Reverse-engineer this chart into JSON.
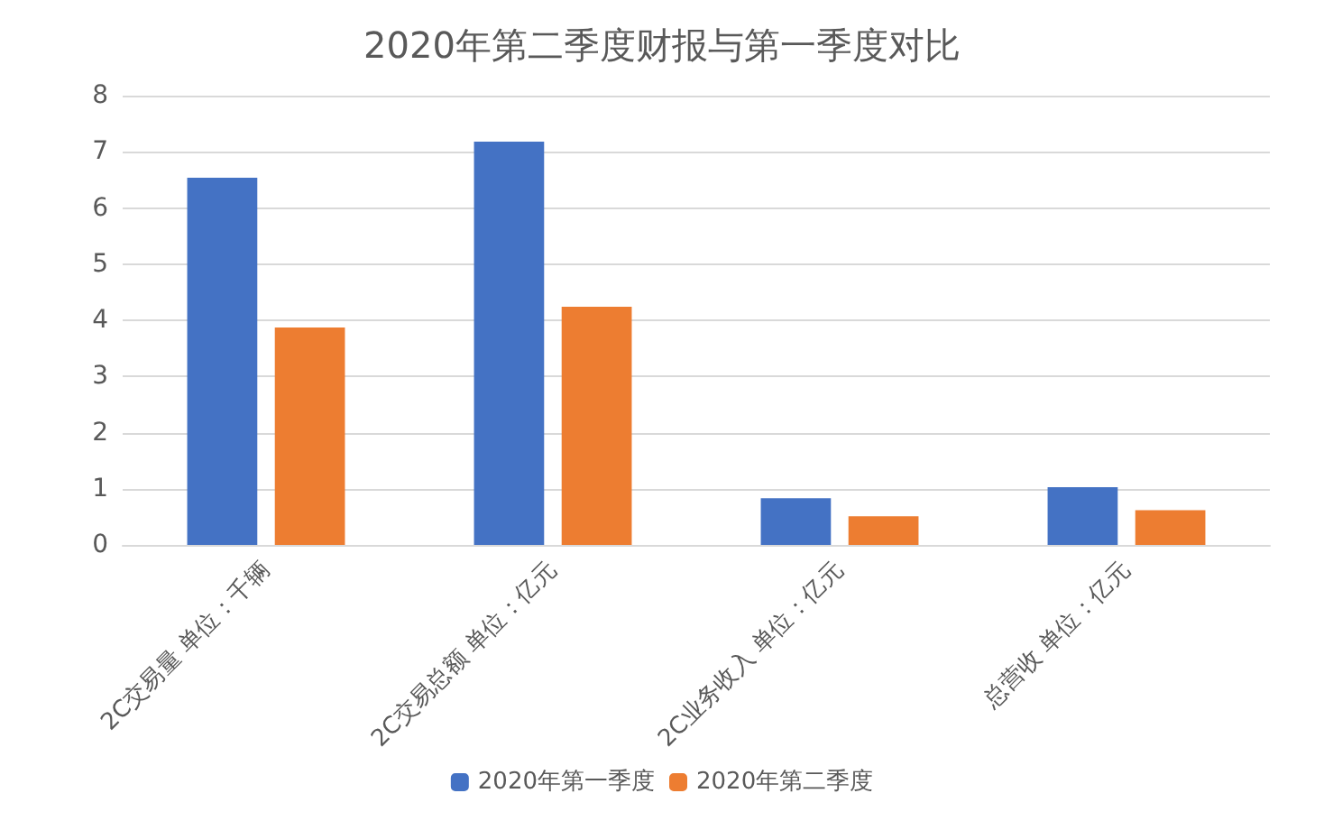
{
  "chart_data": {
    "type": "bar",
    "title": "2020年第二季度财报与第一季度对比",
    "categories": [
      "2C交易量 单位：千辆",
      "2C交易总额 单位：亿元",
      "2C业务收入 单位：亿元",
      "总营收 单位：亿元"
    ],
    "series": [
      {
        "name": "2020年第一季度",
        "color": "#4472c4",
        "values": [
          6.54,
          7.18,
          0.83,
          1.03
        ]
      },
      {
        "name": "2020年第二季度",
        "color": "#ed7d31",
        "values": [
          3.87,
          4.24,
          0.51,
          0.62
        ]
      }
    ],
    "ylim": [
      0,
      8
    ],
    "yticks": [
      0,
      1,
      2,
      3,
      4,
      5,
      6,
      7,
      8
    ],
    "grid": "y",
    "legend": "bottom"
  }
}
